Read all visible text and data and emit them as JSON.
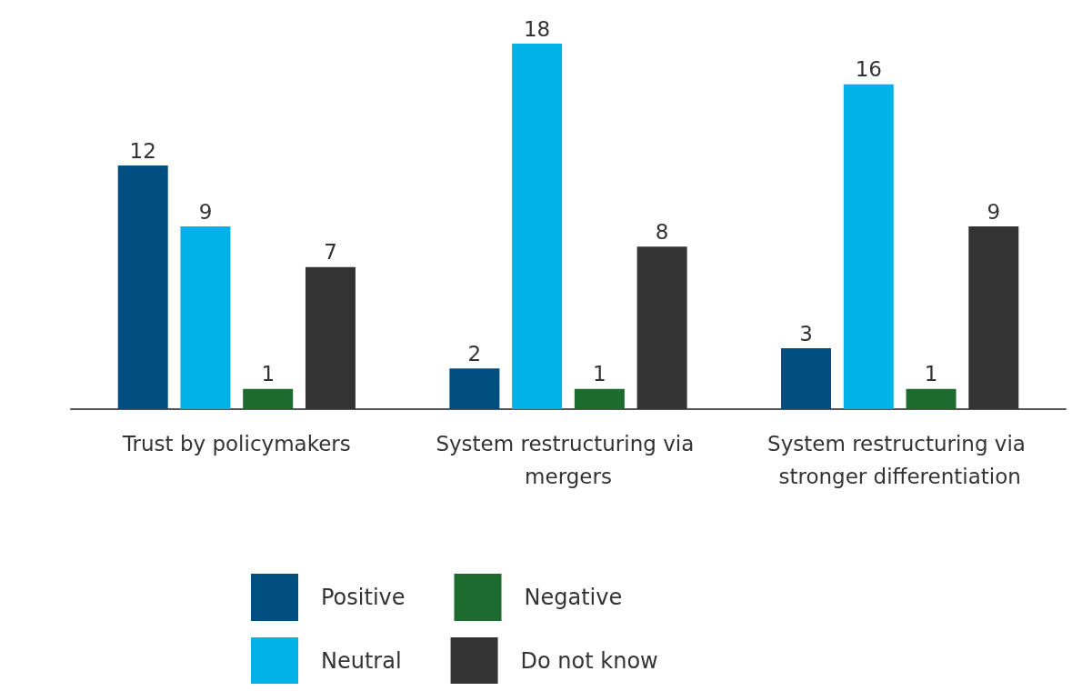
{
  "chart_data": {
    "type": "bar",
    "categories": [
      "Trust by policymakers",
      "System restructuring via mergers",
      "System restructuring via stronger differentiation"
    ],
    "series": [
      {
        "name": "Positive",
        "color": "#004f80",
        "values": [
          12,
          2,
          3
        ]
      },
      {
        "name": "Neutral",
        "color": "#00b2e8",
        "values": [
          9,
          18,
          16
        ]
      },
      {
        "name": "Negative",
        "color": "#1e6b30",
        "values": [
          1,
          1,
          1
        ]
      },
      {
        "name": "Do not know",
        "color": "#333333",
        "values": [
          7,
          8,
          9
        ]
      }
    ],
    "data_labels": true,
    "legend": "bottom"
  }
}
